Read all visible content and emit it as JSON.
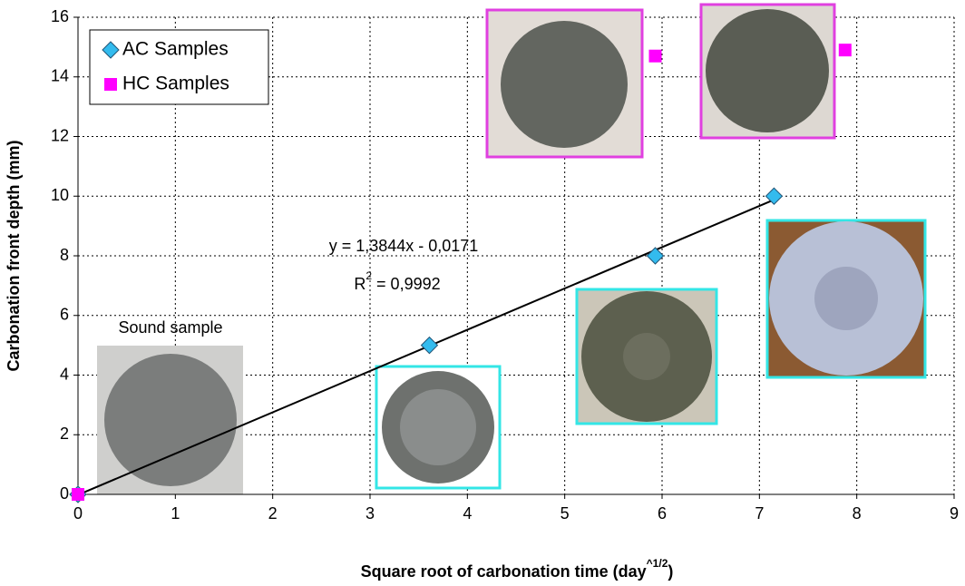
{
  "chart_data": {
    "type": "scatter",
    "xlabel": [
      "Square root of carbonation time (day",
      "^1/2",
      ")"
    ],
    "ylabel": "Carbonation front depth (mm)",
    "xlim": [
      0,
      9
    ],
    "xticks": [
      0,
      1,
      2,
      3,
      4,
      5,
      6,
      7,
      8,
      9
    ],
    "ylim": [
      0,
      16
    ],
    "yticks": [
      0,
      2,
      4,
      6,
      8,
      10,
      12,
      14,
      16
    ],
    "grid": true,
    "legend": "upper left",
    "series": [
      {
        "name": "AC Samples",
        "color": "#33bbee",
        "marker": "diamond",
        "x": [
          0,
          3.61,
          5.93,
          7.15
        ],
        "values": [
          0,
          5.0,
          8.0,
          10.0
        ]
      },
      {
        "name": "HC Samples",
        "color": "#ff00ff",
        "marker": "square",
        "x": [
          0,
          5.93,
          7.88
        ],
        "values": [
          0,
          14.7,
          14.9
        ]
      }
    ],
    "trendline": {
      "slope": 1.3844,
      "intercept": -0.0171,
      "equation": "y = 1,3844x - 0,0171",
      "r2": [
        "R",
        "2",
        " = 0,9992"
      ]
    },
    "annotation": "Sound sample"
  }
}
